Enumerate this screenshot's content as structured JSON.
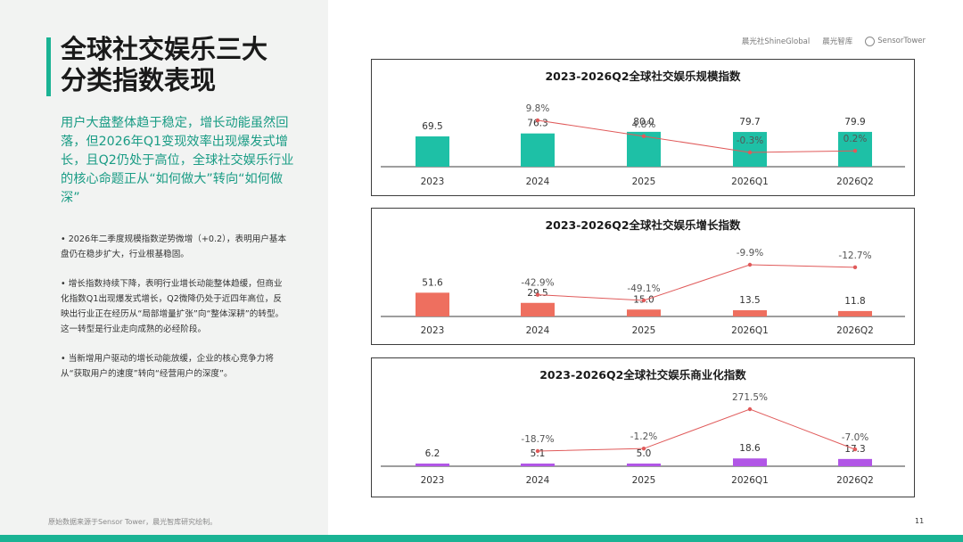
{
  "title_lines": [
    "全球社交娱乐三大",
    "分类指数表现"
  ],
  "subtitle": "用户大盘整体趋于稳定，增长动能虽然回落，但2026年Q1变现效率出现爆发式增长，且Q2仍处于高位，全球社交娱乐行业的核心命题正从“如何做大”转向“如何做深”",
  "bullets": [
    "•  2026年二季度规模指数逆势微增（+0.2），表明用户基本盘仍在稳步扩大，行业根基稳固。",
    "•  增长指数持续下降，表明行业增长动能整体趋缓，但商业化指数Q1出现爆发式增长，Q2微降仍处于近四年高位，反映出行业正在经历从“局部增量扩张”向“整体深耕”的转型。这一转型是行业走向成熟的必经阶段。",
    "•  当新增用户驱动的增长动能放缓，企业的核心竞争力将从“获取用户的速度”转向“经营用户的深度”。"
  ],
  "footnote": "原始数据来源于Sensor Tower，晨光智库研究绘制。",
  "page_number": "11",
  "logos": {
    "logo1": "晨光社ShineGlobal",
    "logo2": "晨光智库",
    "logo3": "SensorTower"
  },
  "chart_data": [
    {
      "type": "bar",
      "title": "2023-2026Q2全球社交娱乐规模指数",
      "categories": [
        "2023",
        "2024",
        "2025",
        "2026Q1",
        "2026Q2"
      ],
      "values": [
        69.5,
        76.3,
        80.0,
        79.7,
        79.9
      ],
      "value_labels": [
        "69.5",
        "76.3",
        "80.0",
        "79.7",
        "79.9"
      ],
      "bar_color": "#1ec0a6",
      "growth": [
        null,
        9.8,
        4.8,
        -0.3,
        0.2
      ],
      "growth_labels": [
        "",
        "9.8%",
        "4.8%",
        "-0.3%",
        "0.2%"
      ],
      "line_color": "#e05a5a"
    },
    {
      "type": "bar",
      "title": "2023-2026Q2全球社交娱乐增长指数",
      "categories": [
        "2023",
        "2024",
        "2025",
        "2026Q1",
        "2026Q2"
      ],
      "values": [
        51.6,
        29.5,
        15.0,
        13.5,
        11.8
      ],
      "value_labels": [
        "51.6",
        "29.5",
        "15.0",
        "13.5",
        "11.8"
      ],
      "bar_color": "#ee6f5f",
      "growth": [
        null,
        -42.9,
        -49.1,
        -9.9,
        -12.7
      ],
      "growth_labels": [
        "",
        "-42.9%",
        "-49.1%",
        "-9.9%",
        "-12.7%"
      ],
      "line_color": "#e05a5a"
    },
    {
      "type": "bar",
      "title": "2023-2026Q2全球社交娱乐商业化指数",
      "categories": [
        "2023",
        "2024",
        "2025",
        "2026Q1",
        "2026Q2"
      ],
      "values": [
        6.2,
        5.1,
        5.0,
        18.6,
        17.3
      ],
      "value_labels": [
        "6.2",
        "5.1",
        "5.0",
        "18.6",
        "17.3"
      ],
      "bar_color": "#b156e6",
      "growth": [
        null,
        -18.7,
        -1.2,
        271.5,
        -7.0
      ],
      "growth_labels": [
        "",
        "-18.7%",
        "-1.2%",
        "271.5%",
        "-7.0%"
      ],
      "line_color": "#e05a5a"
    }
  ]
}
